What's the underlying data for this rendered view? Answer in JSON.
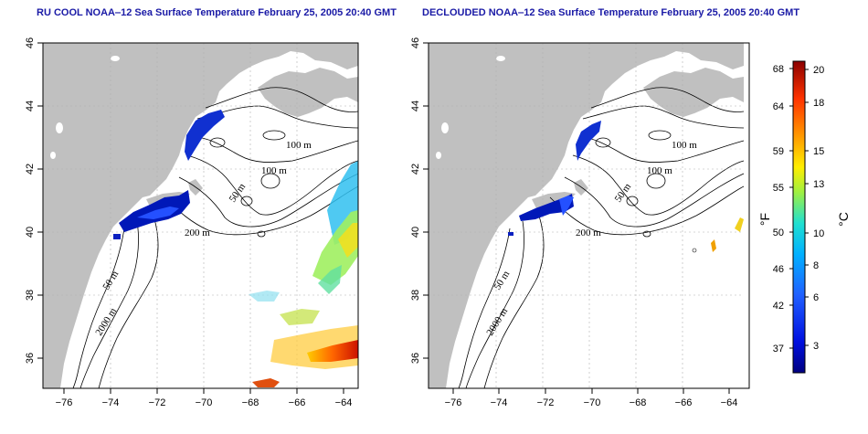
{
  "panels": [
    {
      "title": "RU COOL NOAA‒12 Sea Surface Temperature February 25, 2005 20:40 GMT",
      "contour_labels": [
        "100 m",
        "100 m",
        "50 m",
        "200 m",
        "50 m",
        "2000 m"
      ]
    },
    {
      "title": "DECLOUDED NOAA‒12 Sea Surface Temperature February 25, 2005 20:40 GMT",
      "contour_labels": [
        "100 m",
        "100 m",
        "50 m",
        "200 m",
        "50 m",
        "2000 m"
      ]
    }
  ],
  "map_axes": {
    "lon_ticks": [
      "−76",
      "−74",
      "−72",
      "−70",
      "−68",
      "−66",
      "−64"
    ],
    "lat_ticks": [
      "36",
      "38",
      "40",
      "42",
      "44",
      "46"
    ]
  },
  "colorbar": {
    "fahrenheit_ticks": [
      "37",
      "42",
      "46",
      "50",
      "55",
      "59",
      "64",
      "68"
    ],
    "celsius_ticks": [
      "3",
      "6",
      "8",
      "10",
      "13",
      "15",
      "18",
      "20"
    ],
    "fahrenheit_label": "°F",
    "celsius_label": "°C"
  },
  "colors": {
    "land": "#c0c0c0",
    "contour": "#000000",
    "grid": "#b0b0b0",
    "title": "#1a1aa6"
  }
}
